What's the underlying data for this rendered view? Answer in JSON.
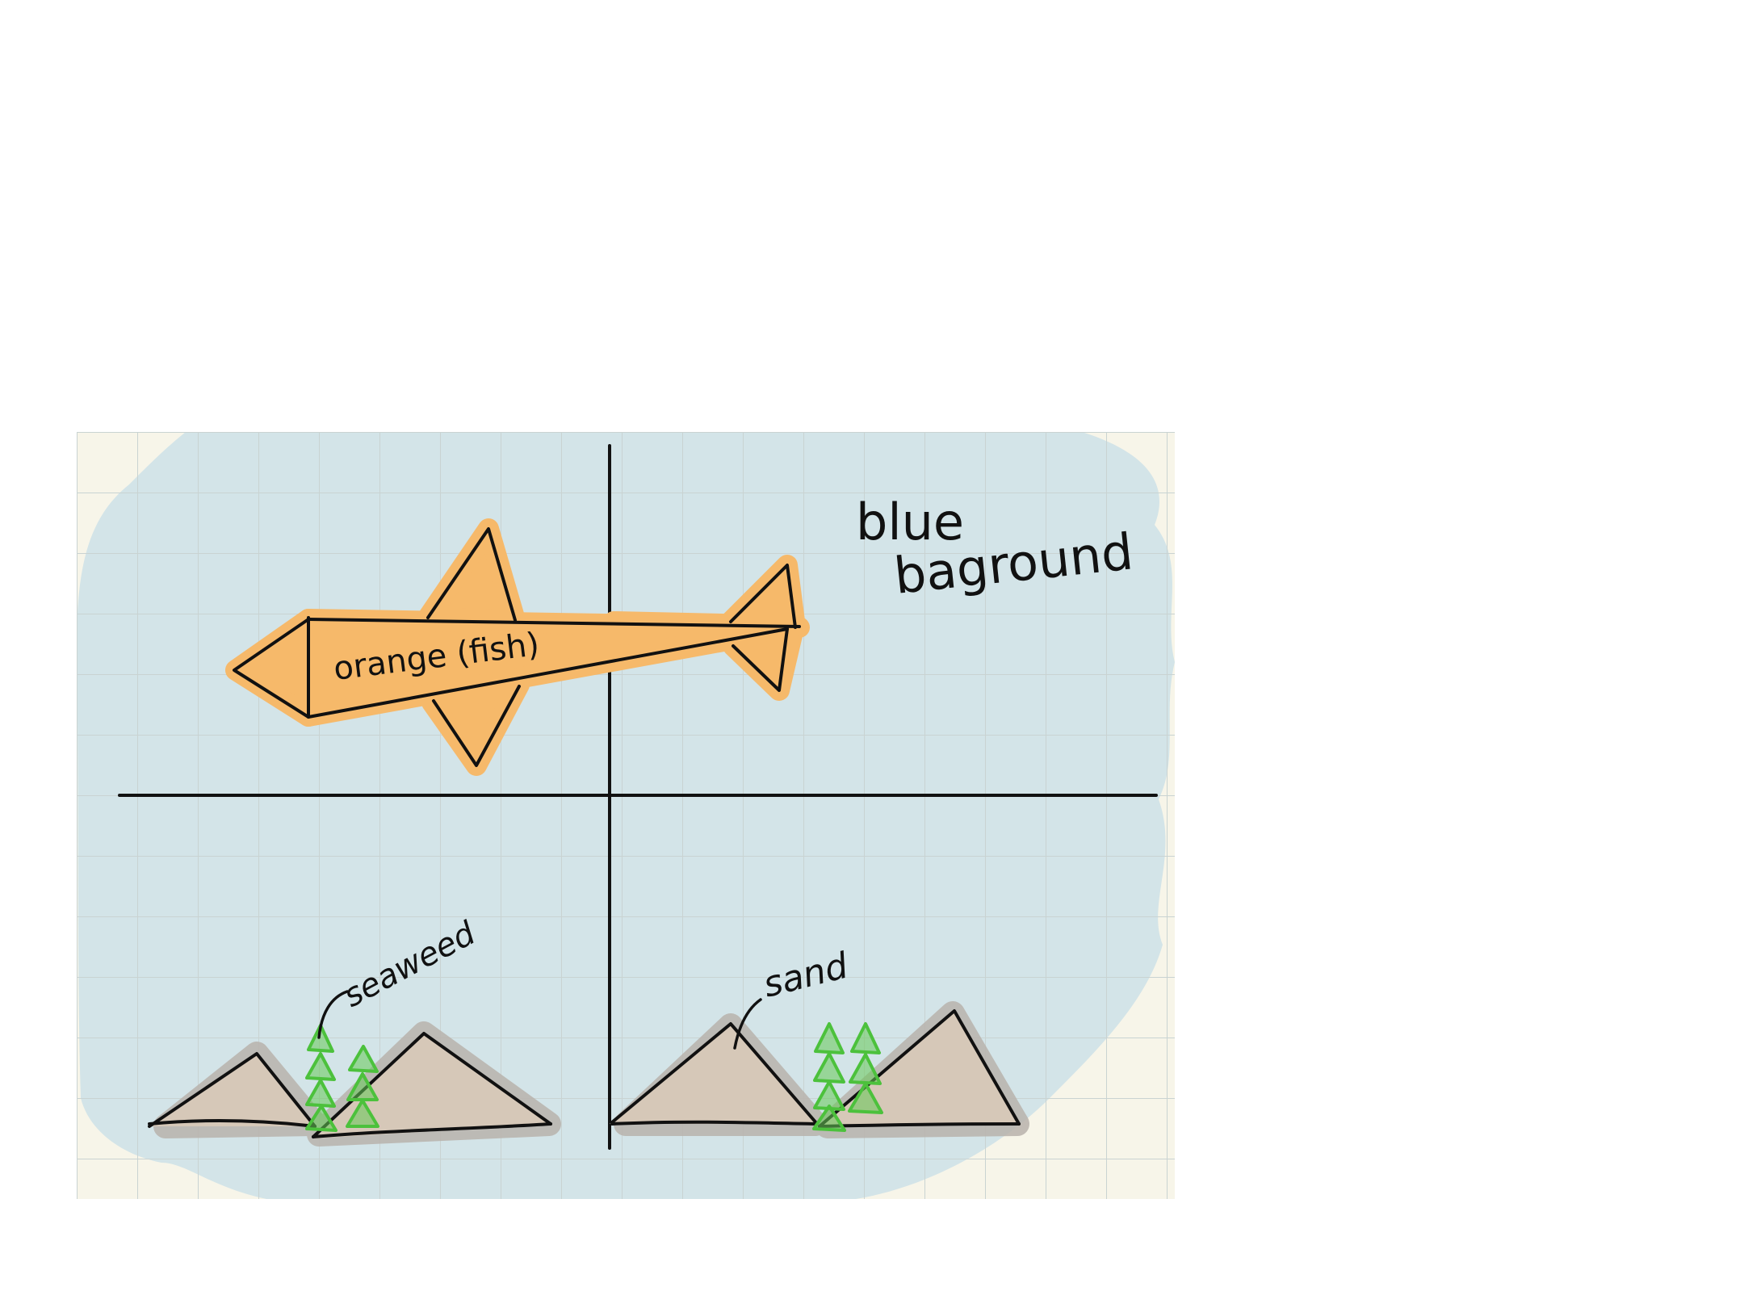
{
  "labels": {
    "fish": "orange (fish)",
    "background_line1": "blue",
    "background_line2": "baground",
    "seaweed": "seaweed",
    "sand": "sand"
  },
  "colors": {
    "page": "#ffffff",
    "paper": "#f7f5e9",
    "grid_line": "#c9d3d2",
    "water": "#d3e4e8",
    "fish": "#f6b96a",
    "fish_shadow": "#e8a656",
    "sand": "#d6c8b8",
    "sand_shadow": "#b9b3ad",
    "seaweed": "#4cc13c",
    "ink": "#111111"
  }
}
